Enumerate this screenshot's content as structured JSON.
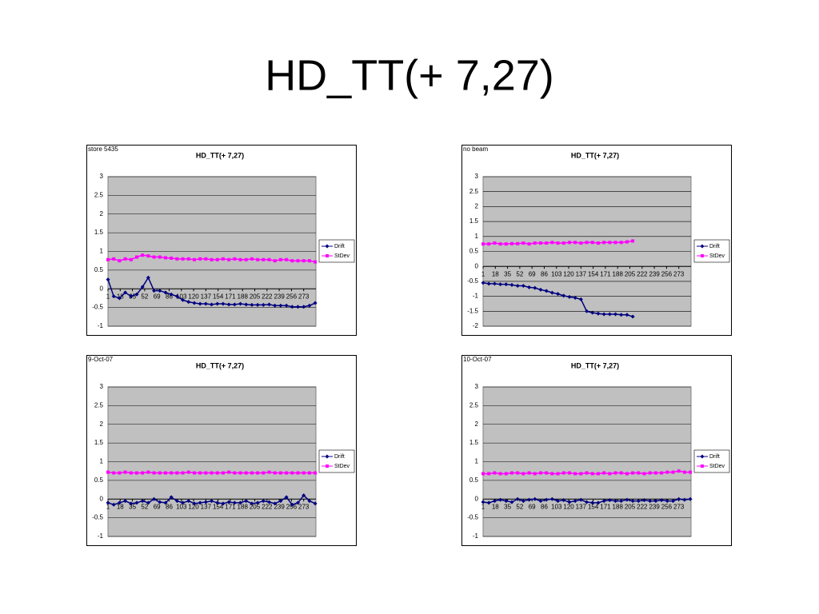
{
  "title": "HD_TT(+ 7,27)",
  "chart_data": [
    {
      "type": "line",
      "note": "store 5435",
      "title": "HD_TT(+ 7,27)",
      "x": [
        1,
        9,
        17,
        25,
        33,
        41,
        49,
        57,
        65,
        73,
        81,
        89,
        97,
        105,
        113,
        121,
        129,
        137,
        145,
        153,
        161,
        169,
        177,
        185,
        193,
        201,
        209,
        217,
        225,
        233,
        241,
        249,
        257,
        265,
        273,
        281,
        289
      ],
      "xlim": [
        1,
        290
      ],
      "xticks": [
        1,
        18,
        35,
        52,
        69,
        86,
        103,
        120,
        137,
        154,
        171,
        188,
        205,
        222,
        239,
        256,
        273
      ],
      "ylim": [
        -1,
        3
      ],
      "yticks": [
        -1,
        -0.5,
        0,
        0.5,
        1,
        1.5,
        2,
        2.5,
        3
      ],
      "grid": true,
      "legend": "right",
      "series": [
        {
          "name": "Drift",
          "color": "#000080",
          "values": [
            0.25,
            -0.2,
            -0.25,
            -0.1,
            -0.2,
            -0.15,
            0.05,
            0.3,
            -0.05,
            -0.05,
            -0.1,
            -0.15,
            -0.2,
            -0.3,
            -0.35,
            -0.38,
            -0.4,
            -0.4,
            -0.42,
            -0.4,
            -0.4,
            -0.42,
            -0.42,
            -0.4,
            -0.42,
            -0.43,
            -0.43,
            -0.43,
            -0.42,
            -0.45,
            -0.45,
            -0.45,
            -0.48,
            -0.48,
            -0.48,
            -0.45,
            -0.38
          ]
        },
        {
          "name": "StDev",
          "color": "#ff00ff",
          "values": [
            0.78,
            0.8,
            0.75,
            0.8,
            0.78,
            0.85,
            0.9,
            0.88,
            0.85,
            0.85,
            0.83,
            0.82,
            0.8,
            0.8,
            0.8,
            0.78,
            0.8,
            0.8,
            0.78,
            0.78,
            0.8,
            0.78,
            0.8,
            0.78,
            0.78,
            0.8,
            0.78,
            0.78,
            0.78,
            0.75,
            0.78,
            0.78,
            0.75,
            0.75,
            0.75,
            0.75,
            0.72
          ]
        }
      ]
    },
    {
      "type": "line",
      "note": "no beam",
      "title": "HD_TT(+ 7,27)",
      "x": [
        1,
        9,
        17,
        25,
        33,
        41,
        49,
        57,
        65,
        73,
        81,
        89,
        97,
        105,
        113,
        121,
        129,
        137,
        145,
        153,
        161,
        169,
        177,
        185,
        193,
        201,
        209
      ],
      "xlim": [
        1,
        290
      ],
      "xticks": [
        1,
        18,
        35,
        52,
        69,
        86,
        103,
        120,
        137,
        154,
        171,
        188,
        205,
        222,
        239,
        256,
        273
      ],
      "ylim": [
        -2,
        3
      ],
      "yticks": [
        -2,
        -1.5,
        -1,
        -0.5,
        0,
        0.5,
        1,
        1.5,
        2,
        2.5,
        3
      ],
      "grid": true,
      "legend": "right",
      "series": [
        {
          "name": "Drift",
          "color": "#000080",
          "values": [
            -0.55,
            -0.58,
            -0.58,
            -0.6,
            -0.6,
            -0.62,
            -0.65,
            -0.65,
            -0.7,
            -0.72,
            -0.78,
            -0.82,
            -0.88,
            -0.92,
            -0.98,
            -1.02,
            -1.05,
            -1.1,
            -1.5,
            -1.55,
            -1.58,
            -1.6,
            -1.6,
            -1.6,
            -1.62,
            -1.62,
            -1.68
          ]
        },
        {
          "name": "StDev",
          "color": "#ff00ff",
          "values": [
            0.75,
            0.75,
            0.78,
            0.75,
            0.75,
            0.76,
            0.76,
            0.78,
            0.75,
            0.78,
            0.78,
            0.78,
            0.8,
            0.78,
            0.78,
            0.8,
            0.8,
            0.78,
            0.8,
            0.8,
            0.78,
            0.8,
            0.8,
            0.8,
            0.8,
            0.82,
            0.85
          ]
        }
      ]
    },
    {
      "type": "line",
      "note": "9-Oct-07",
      "title": "HD_TT(+ 7,27)",
      "x": [
        1,
        9,
        17,
        25,
        33,
        41,
        49,
        57,
        65,
        73,
        81,
        89,
        97,
        105,
        113,
        121,
        129,
        137,
        145,
        153,
        161,
        169,
        177,
        185,
        193,
        201,
        209,
        217,
        225,
        233,
        241,
        249,
        257,
        265,
        273,
        281,
        289
      ],
      "xlim": [
        1,
        290
      ],
      "xticks": [
        1,
        18,
        35,
        52,
        69,
        86,
        103,
        120,
        137,
        154,
        171,
        188,
        205,
        222,
        239,
        256,
        273
      ],
      "ylim": [
        -1,
        3
      ],
      "yticks": [
        -1,
        -0.5,
        0,
        0.5,
        1,
        1.5,
        2,
        2.5,
        3
      ],
      "grid": true,
      "legend": "right",
      "series": [
        {
          "name": "Drift",
          "color": "#000080",
          "values": [
            -0.1,
            -0.15,
            -0.1,
            -0.05,
            -0.12,
            -0.1,
            -0.05,
            -0.1,
            0,
            -0.08,
            -0.1,
            0.05,
            -0.05,
            -0.1,
            -0.05,
            -0.12,
            -0.1,
            -0.08,
            -0.05,
            -0.1,
            -0.12,
            -0.08,
            -0.1,
            -0.1,
            -0.05,
            -0.12,
            -0.1,
            -0.05,
            -0.08,
            -0.12,
            -0.05,
            0.05,
            -0.15,
            -0.1,
            0.1,
            -0.05,
            -0.12
          ]
        },
        {
          "name": "StDev",
          "color": "#ff00ff",
          "values": [
            0.72,
            0.7,
            0.7,
            0.72,
            0.7,
            0.7,
            0.7,
            0.72,
            0.7,
            0.7,
            0.7,
            0.7,
            0.7,
            0.7,
            0.72,
            0.7,
            0.7,
            0.7,
            0.7,
            0.7,
            0.7,
            0.72,
            0.7,
            0.7,
            0.7,
            0.7,
            0.7,
            0.7,
            0.72,
            0.7,
            0.7,
            0.7,
            0.7,
            0.7,
            0.7,
            0.7,
            0.7
          ]
        }
      ]
    },
    {
      "type": "line",
      "note": "10-Oct-07",
      "title": "HD_TT(+ 7,27)",
      "x": [
        1,
        9,
        17,
        25,
        33,
        41,
        49,
        57,
        65,
        73,
        81,
        89,
        97,
        105,
        113,
        121,
        129,
        137,
        145,
        153,
        161,
        169,
        177,
        185,
        193,
        201,
        209,
        217,
        225,
        233,
        241,
        249,
        257,
        265,
        273,
        281,
        289
      ],
      "xlim": [
        1,
        290
      ],
      "xticks": [
        1,
        18,
        35,
        52,
        69,
        86,
        103,
        120,
        137,
        154,
        171,
        188,
        205,
        222,
        239,
        256,
        273
      ],
      "ylim": [
        -1,
        3
      ],
      "yticks": [
        -1,
        -0.5,
        0,
        0.5,
        1,
        1.5,
        2,
        2.5,
        3
      ],
      "grid": true,
      "legend": "right",
      "series": [
        {
          "name": "Drift",
          "color": "#000080",
          "values": [
            -0.08,
            -0.1,
            -0.05,
            -0.02,
            -0.05,
            -0.08,
            0,
            -0.05,
            -0.02,
            0,
            -0.05,
            -0.02,
            0,
            -0.05,
            -0.03,
            -0.08,
            -0.05,
            -0.02,
            -0.08,
            -0.1,
            -0.1,
            -0.05,
            -0.03,
            -0.05,
            -0.05,
            -0.02,
            -0.05,
            -0.05,
            -0.03,
            -0.05,
            -0.05,
            -0.03,
            -0.05,
            -0.05,
            0,
            -0.02,
            0
          ]
        },
        {
          "name": "StDev",
          "color": "#ff00ff",
          "values": [
            0.68,
            0.68,
            0.7,
            0.68,
            0.68,
            0.7,
            0.7,
            0.68,
            0.7,
            0.68,
            0.7,
            0.7,
            0.68,
            0.68,
            0.7,
            0.7,
            0.68,
            0.68,
            0.7,
            0.68,
            0.68,
            0.7,
            0.68,
            0.7,
            0.7,
            0.68,
            0.7,
            0.7,
            0.68,
            0.7,
            0.7,
            0.7,
            0.72,
            0.72,
            0.75,
            0.72,
            0.72
          ]
        }
      ]
    }
  ]
}
